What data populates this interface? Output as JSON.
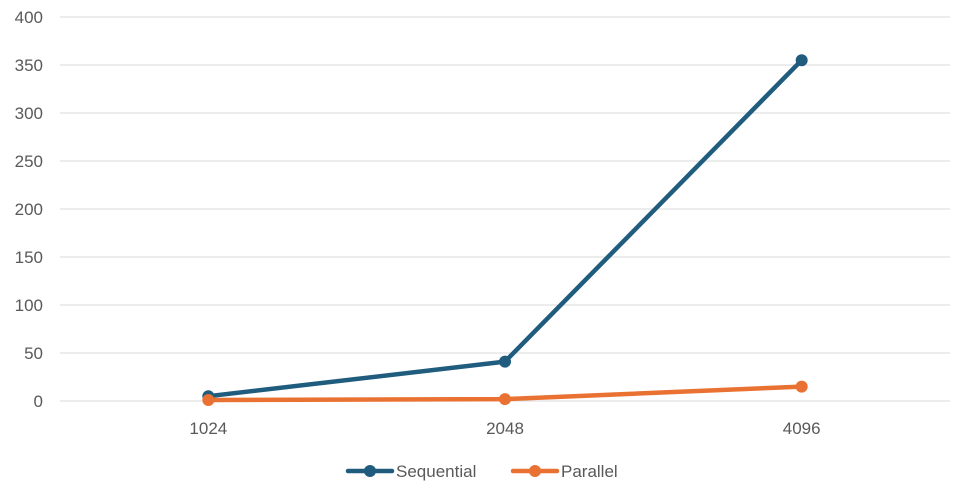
{
  "chart_data": {
    "type": "line",
    "title": "",
    "xlabel": "",
    "ylabel": "",
    "categories": [
      "1024",
      "2048",
      "4096"
    ],
    "series": [
      {
        "name": "Sequential",
        "values": [
          5,
          41,
          355
        ],
        "color": "#1F5C7E"
      },
      {
        "name": "Parallel",
        "values": [
          1,
          2,
          15
        ],
        "color": "#E97132"
      }
    ],
    "ylim": [
      0,
      400
    ],
    "yticks": [
      0,
      50,
      100,
      150,
      200,
      250,
      300,
      350,
      400
    ],
    "grid": true,
    "legend": "bottom-center",
    "gridline_color": "#D9D9D9"
  }
}
